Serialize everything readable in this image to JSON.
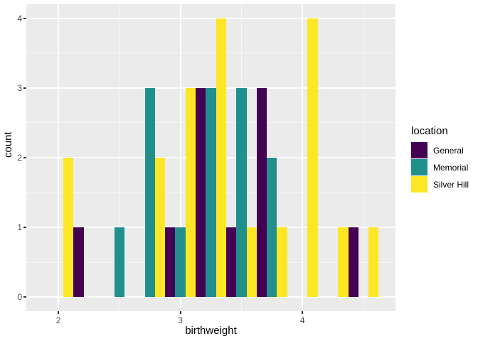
{
  "chart_data": {
    "type": "bar",
    "subtype": "dodged-histogram",
    "title": "",
    "xlabel": "birthweight",
    "ylabel": "count",
    "x_ticks": [
      2,
      3,
      4
    ],
    "y_ticks": [
      0,
      1,
      2,
      3,
      4
    ],
    "x_minor_ticks": [
      2.5,
      3.5,
      4.5
    ],
    "y_minor_ticks": [
      0.5,
      1.5,
      2.5,
      3.5
    ],
    "xlim": [
      1.7375,
      4.7625
    ],
    "ylim": [
      -0.2,
      4.2
    ],
    "binwidth": 0.25,
    "bin_centers": [
      2.0,
      2.25,
      2.5,
      2.75,
      3.0,
      3.25,
      3.5,
      3.75,
      4.0,
      4.25,
      4.5
    ],
    "series": [
      {
        "name": "General",
        "color": "#440154",
        "values": [
          0,
          1,
          0,
          0,
          1,
          3,
          1,
          3,
          0,
          0,
          1
        ]
      },
      {
        "name": "Memorial",
        "color": "#21908C",
        "values": [
          0,
          0,
          1,
          3,
          1,
          3,
          3,
          2,
          0,
          0,
          0
        ]
      },
      {
        "name": "Silver Hill",
        "color": "#FDE725",
        "values": [
          2,
          0,
          0,
          2,
          3,
          4,
          1,
          1,
          4,
          1,
          1
        ]
      }
    ],
    "legend_position": "right",
    "grid": true
  },
  "legend": {
    "title": "location",
    "items": [
      {
        "label": "General",
        "color": "#440154"
      },
      {
        "label": "Memorial",
        "color": "#21908C"
      },
      {
        "label": "Silver Hill",
        "color": "#FDE725"
      }
    ]
  },
  "theme": {
    "panel_background": "#EBEBEB",
    "grid_color": "#FFFFFF",
    "tick_mark_color": "#333333",
    "tick_label_color": "#4D4D4D",
    "axis_title_color": "#000000"
  }
}
